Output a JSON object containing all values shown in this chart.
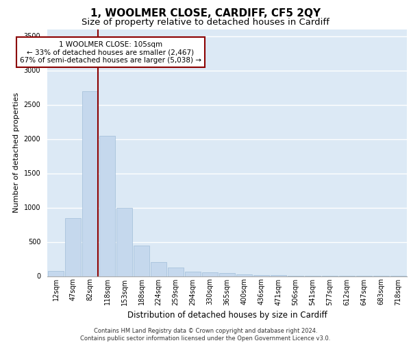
{
  "title": "1, WOOLMER CLOSE, CARDIFF, CF5 2QY",
  "subtitle": "Size of property relative to detached houses in Cardiff",
  "xlabel": "Distribution of detached houses by size in Cardiff",
  "ylabel": "Number of detached properties",
  "bar_color": "#c5d8ed",
  "bar_edge_color": "#a0bdd8",
  "background_color": "#dce9f5",
  "categories": [
    "12sqm",
    "47sqm",
    "82sqm",
    "118sqm",
    "153sqm",
    "188sqm",
    "224sqm",
    "259sqm",
    "294sqm",
    "330sqm",
    "365sqm",
    "400sqm",
    "436sqm",
    "471sqm",
    "506sqm",
    "541sqm",
    "577sqm",
    "612sqm",
    "647sqm",
    "683sqm",
    "718sqm"
  ],
  "values": [
    75,
    850,
    2700,
    2050,
    1000,
    450,
    210,
    130,
    70,
    55,
    45,
    30,
    20,
    12,
    7,
    5,
    4,
    3,
    2,
    2,
    1
  ],
  "ylim": [
    0,
    3600
  ],
  "yticks": [
    0,
    500,
    1000,
    1500,
    2000,
    2500,
    3000,
    3500
  ],
  "vline_color": "#8b0000",
  "annotation_text": "1 WOOLMER CLOSE: 105sqm\n← 33% of detached houses are smaller (2,467)\n67% of semi-detached houses are larger (5,038) →",
  "annotation_box_color": "white",
  "annotation_box_edge_color": "#8b0000",
  "footer_text": "Contains HM Land Registry data © Crown copyright and database right 2024.\nContains public sector information licensed under the Open Government Licence v3.0.",
  "title_fontsize": 11,
  "subtitle_fontsize": 9.5,
  "xlabel_fontsize": 8.5,
  "ylabel_fontsize": 8,
  "tick_fontsize": 7,
  "annotation_fontsize": 7.5,
  "footer_fontsize": 6
}
